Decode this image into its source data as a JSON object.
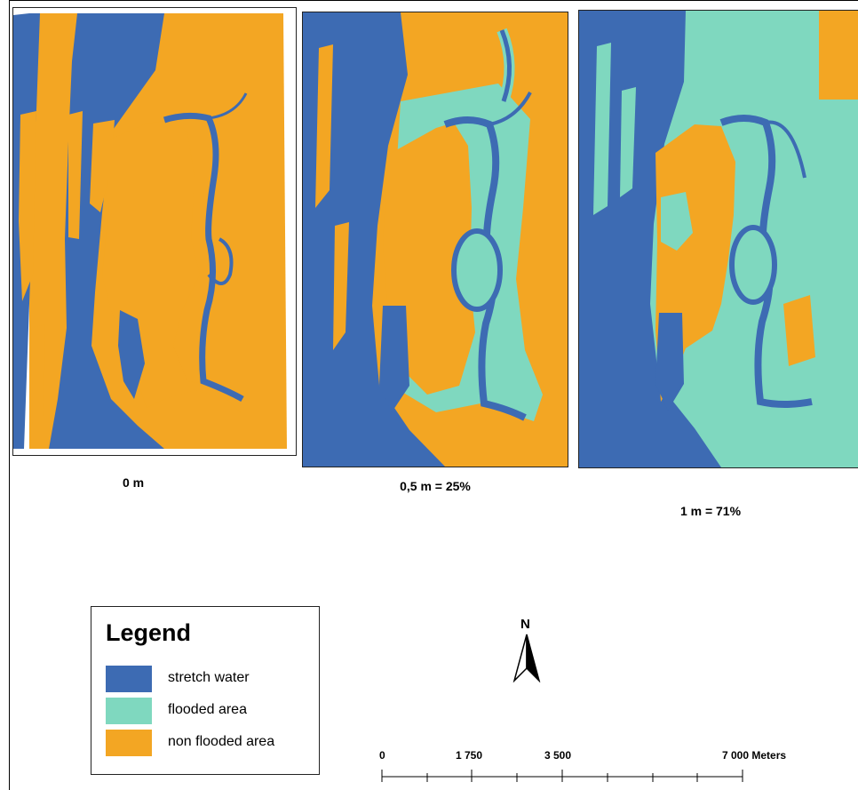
{
  "colors": {
    "stretch_water": "#3d6bb3",
    "flooded_area": "#7fd8bf",
    "non_flooded_area": "#f3a623"
  },
  "panels": [
    {
      "caption": "0 m"
    },
    {
      "caption": "0,5 m = 25%"
    },
    {
      "caption": "1 m = 71%"
    }
  ],
  "legend": {
    "title": "Legend",
    "items": [
      {
        "label": "stretch water",
        "color": "#3d6bb3"
      },
      {
        "label": "flooded area",
        "color": "#7fd8bf"
      },
      {
        "label": "non flooded area",
        "color": "#f3a623"
      }
    ]
  },
  "north_arrow": {
    "letter": "N"
  },
  "scale_bar": {
    "labels": [
      "0",
      "1 750",
      "3 500",
      "7 000 Meters"
    ]
  }
}
